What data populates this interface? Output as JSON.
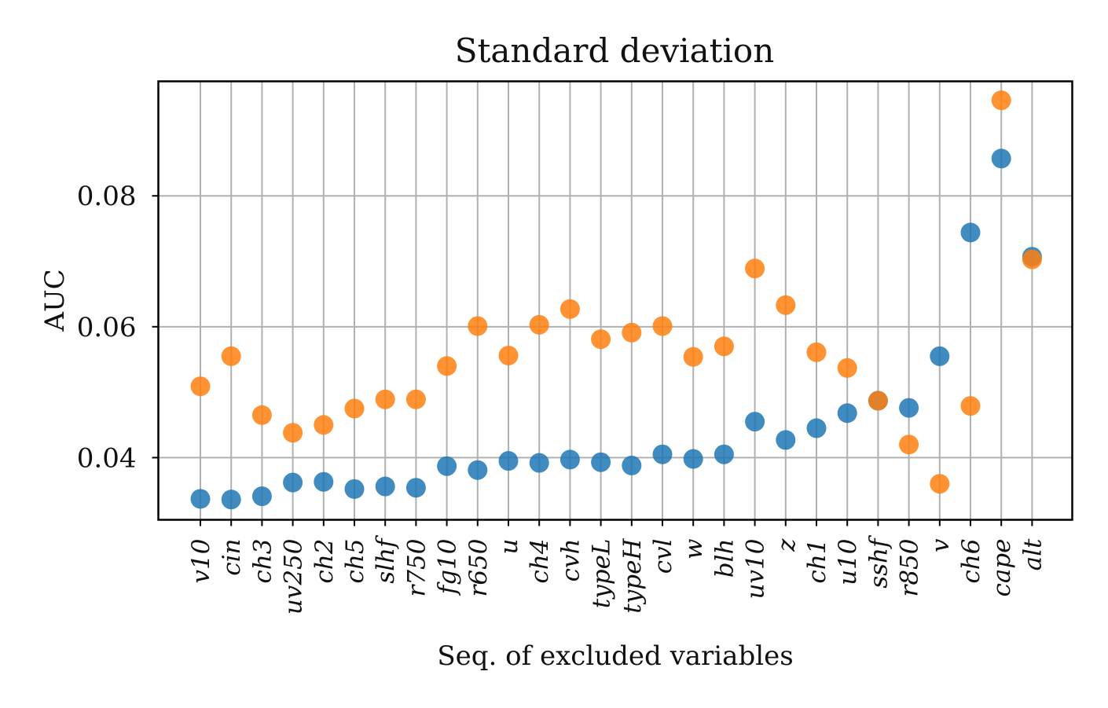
{
  "chart_data": {
    "type": "scatter",
    "title": "Standard deviation",
    "xlabel": "Seq. of excluded variables",
    "ylabel": "AUC",
    "ylim": [
      0.0305,
      0.0975
    ],
    "yticks": [
      0.04,
      0.06,
      0.08
    ],
    "ytick_labels": [
      "0.04",
      "0.06",
      "0.08"
    ],
    "grid": true,
    "legend": "none",
    "categories": [
      "v10",
      "cin",
      "ch3",
      "uv250",
      "ch2",
      "ch5",
      "slhf",
      "r750",
      "fg10",
      "r650",
      "u",
      "ch4",
      "cvh",
      "typeL",
      "typeH",
      "cvl",
      "w",
      "blh",
      "uv10",
      "z",
      "ch1",
      "u10",
      "sshf",
      "r850",
      "v",
      "ch6",
      "cape",
      "alt"
    ],
    "series": [
      {
        "name": "blue",
        "color": "#1f77b4",
        "values": [
          0.0337,
          0.0336,
          0.0341,
          0.0362,
          0.0363,
          0.0352,
          0.0356,
          0.0354,
          0.0387,
          0.0381,
          0.0395,
          0.0392,
          0.0397,
          0.0393,
          0.0388,
          0.0405,
          0.0398,
          0.0405,
          0.0455,
          0.0427,
          0.0445,
          0.0468,
          0.0487,
          0.0476,
          0.0555,
          0.0744,
          0.0857,
          0.0707
        ]
      },
      {
        "name": "orange",
        "color": "#ff7f0e",
        "values": [
          0.0509,
          0.0555,
          0.0465,
          0.0438,
          0.045,
          0.0475,
          0.0489,
          0.0489,
          0.054,
          0.0601,
          0.0556,
          0.0603,
          0.0627,
          0.0581,
          0.0591,
          0.0601,
          0.0554,
          0.057,
          0.0689,
          0.0633,
          0.0561,
          0.0537,
          0.0487,
          0.042,
          0.036,
          0.0479,
          0.0946,
          0.0703
        ]
      }
    ]
  }
}
